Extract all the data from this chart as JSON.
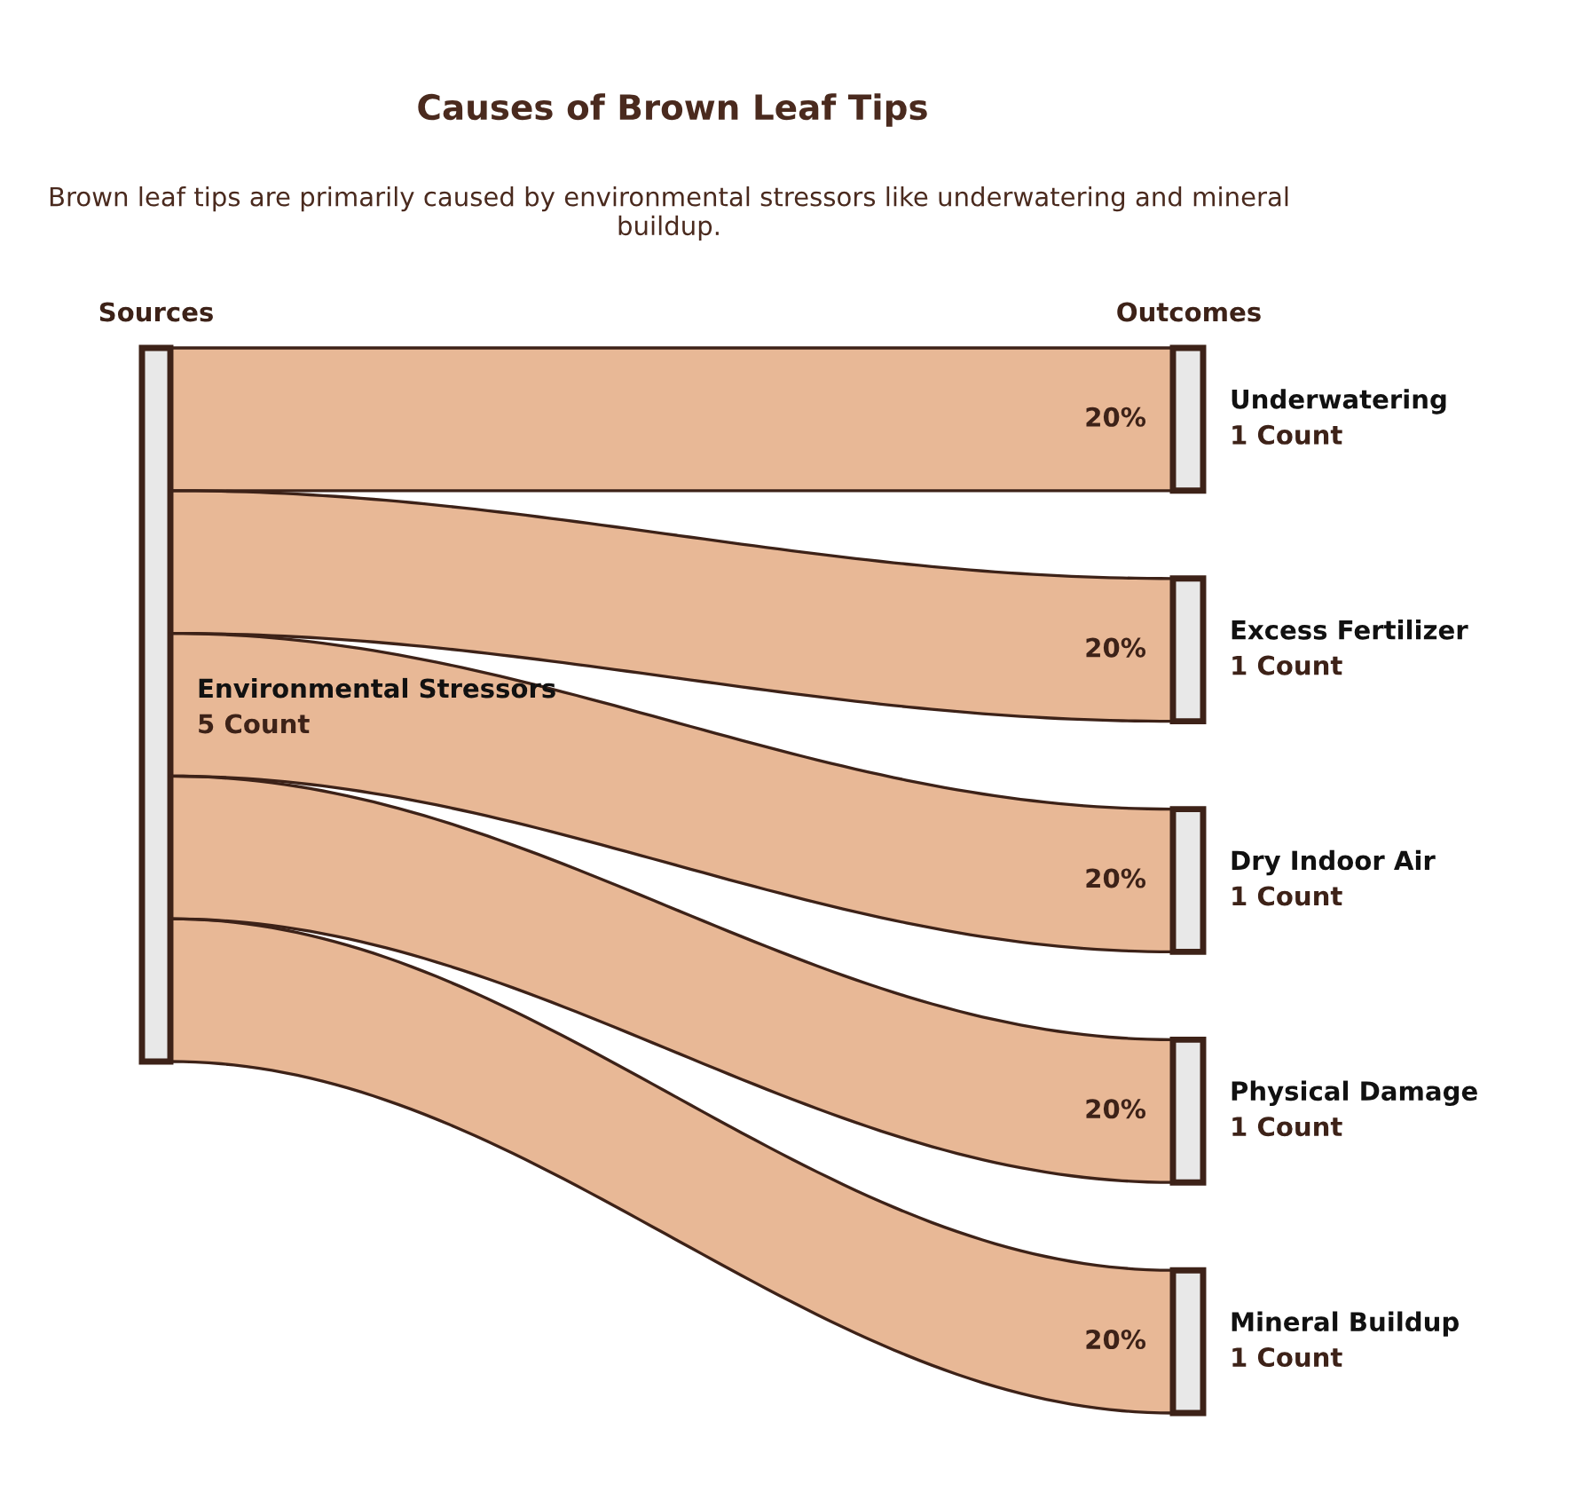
{
  "chart_data": {
    "type": "other",
    "title": "Causes of Brown Leaf Tips",
    "subtitle": "Brown leaf tips are primarily caused by environmental stressors like underwatering and mineral buildup.",
    "categories": [
      "Underwatering",
      "Excess Fertilizer",
      "Dry Indoor Air",
      "Physical Damage",
      "Mineral Buildup"
    ],
    "series": [
      {
        "name": "Environmental Stressors",
        "color": "#e8b896",
        "values": [
          20,
          20,
          20,
          20,
          20
        ],
        "value_labels": [
          "20%",
          "20%",
          "20%",
          "20%",
          "20%"
        ]
      }
    ],
    "annotations": [
      "Sources",
      "Outcomes",
      "5 Count",
      {
        "text": "1 Count",
        "x": "Underwatering"
      },
      {
        "text": "1 Count",
        "x": "Excess Fertilizer"
      },
      {
        "text": "1 Count",
        "x": "Dry Indoor Air"
      },
      {
        "text": "1 Count",
        "x": "Physical Damage"
      },
      {
        "text": "1 Count",
        "x": "Mineral Buildup"
      }
    ]
  }
}
